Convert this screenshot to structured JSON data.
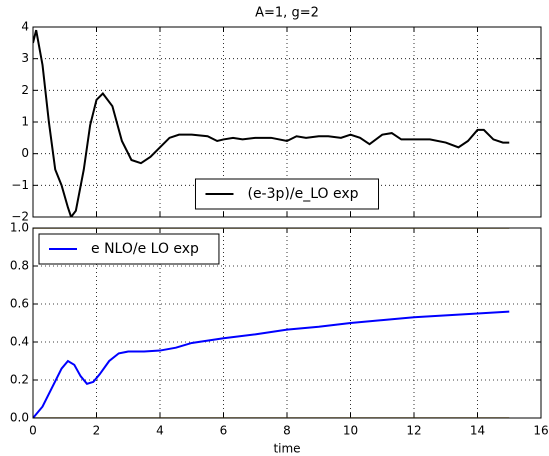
{
  "chart_data": [
    {
      "type": "line",
      "title": "A=1, g=2",
      "x": [
        0,
        0.1,
        0.3,
        0.5,
        0.7,
        0.9,
        1.1,
        1.2,
        1.35,
        1.6,
        1.8,
        2.0,
        2.2,
        2.5,
        2.8,
        3.1,
        3.4,
        3.7,
        4.0,
        4.3,
        4.6,
        5.0,
        5.5,
        5.8,
        6.0,
        6.3,
        6.6,
        7.0,
        7.5,
        8.0,
        8.3,
        8.6,
        9.0,
        9.3,
        9.7,
        10.0,
        10.3,
        10.6,
        11.0,
        11.3,
        11.6,
        12.0,
        12.5,
        13.0,
        13.4,
        13.7,
        14.0,
        14.2,
        14.5,
        14.8,
        15.0
      ],
      "series": [
        {
          "name": "(e-3p)/e_LO exp",
          "color": "#000000",
          "values": [
            3.5,
            3.9,
            2.8,
            1.0,
            -0.5,
            -1.0,
            -1.7,
            -2.0,
            -1.8,
            -0.5,
            0.9,
            1.7,
            1.9,
            1.5,
            0.4,
            -0.2,
            -0.3,
            -0.1,
            0.2,
            0.5,
            0.6,
            0.6,
            0.55,
            0.4,
            0.45,
            0.5,
            0.45,
            0.5,
            0.5,
            0.4,
            0.55,
            0.5,
            0.55,
            0.55,
            0.5,
            0.6,
            0.5,
            0.3,
            0.6,
            0.65,
            0.45,
            0.45,
            0.45,
            0.35,
            0.2,
            0.4,
            0.75,
            0.75,
            0.45,
            0.35,
            0.35
          ]
        }
      ],
      "xlim": [
        0,
        16
      ],
      "xticks": [
        0,
        2,
        4,
        6,
        8,
        10,
        12,
        14,
        16
      ],
      "show_xtick_labels": false,
      "ylim": [
        -2,
        4
      ],
      "yticks": [
        {
          "value": -2,
          "label": "−2"
        },
        {
          "value": -1,
          "label": "−1"
        },
        0,
        1,
        2,
        3,
        4
      ],
      "grid": true,
      "legend": "lower center"
    },
    {
      "type": "line",
      "xlabel": "time",
      "x": [
        0,
        0.3,
        0.6,
        0.9,
        1.1,
        1.3,
        1.5,
        1.7,
        1.9,
        2.1,
        2.4,
        2.7,
        3.0,
        3.5,
        4.0,
        4.5,
        5,
        6,
        7,
        8,
        9,
        10,
        11,
        12,
        13,
        14,
        15
      ],
      "series": [
        {
          "name": "e NLO/e LO exp",
          "color": "#0000ff",
          "values": [
            0,
            0.06,
            0.16,
            0.26,
            0.3,
            0.28,
            0.22,
            0.18,
            0.19,
            0.23,
            0.3,
            0.34,
            0.35,
            0.35,
            0.355,
            0.37,
            0.395,
            0.42,
            0.44,
            0.465,
            0.48,
            0.5,
            0.515,
            0.53,
            0.54,
            0.55,
            0.56
          ]
        },
        {
          "color": "#9a7a28",
          "values": [
            0,
            0,
            0,
            0,
            0,
            0,
            0,
            0,
            0,
            0,
            0,
            0,
            0,
            0,
            0,
            0,
            0,
            0,
            0,
            0,
            0,
            0,
            0,
            0,
            0,
            0,
            0
          ]
        },
        {
          "color": "#9a7a28",
          "values": [
            1,
            1,
            1,
            1,
            1,
            1,
            1,
            1,
            1,
            1,
            1,
            1,
            1,
            1,
            1,
            1,
            1,
            1,
            1,
            1,
            1,
            1,
            1,
            1,
            1,
            1,
            1
          ]
        }
      ],
      "xlim": [
        0,
        16
      ],
      "xticks": [
        0,
        2,
        4,
        6,
        8,
        10,
        12,
        14,
        16
      ],
      "show_xtick_labels": true,
      "ylim": [
        0,
        1
      ],
      "yticks": [
        {
          "value": 0,
          "label": "0.0"
        },
        0.2,
        0.4,
        0.6,
        0.8,
        {
          "value": 1,
          "label": "1.0"
        }
      ],
      "grid": true,
      "legend": "upper left"
    }
  ]
}
